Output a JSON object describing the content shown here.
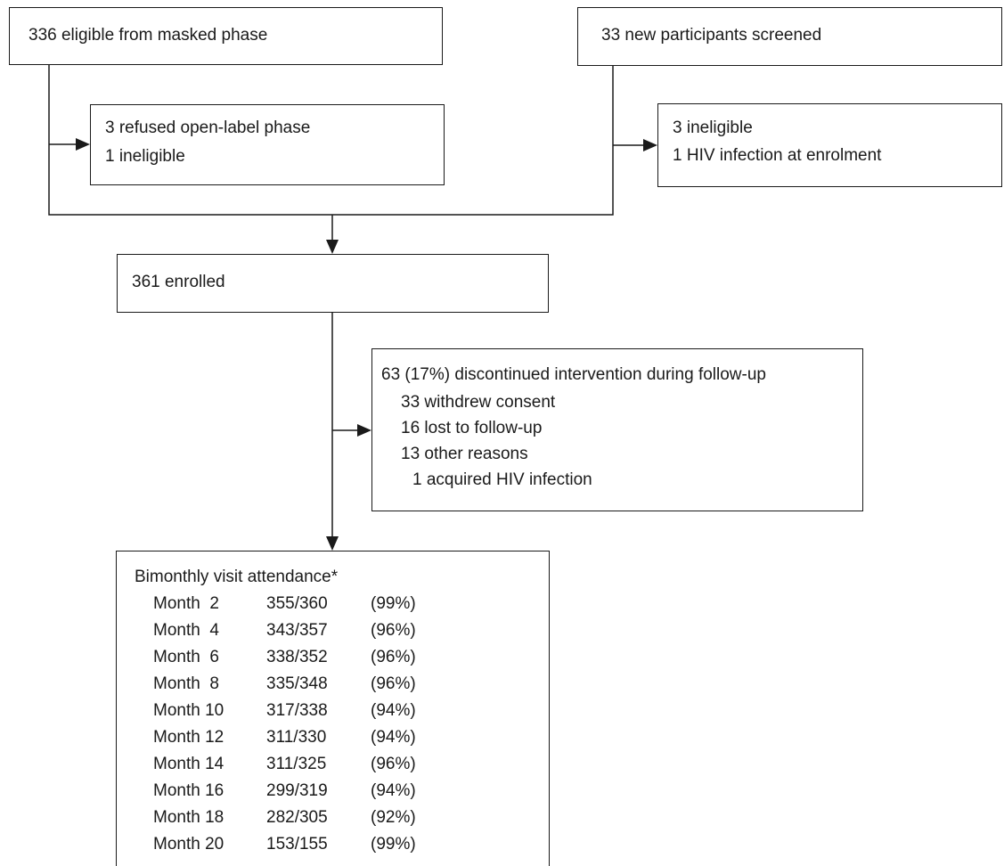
{
  "nodes": {
    "eligible_masked": "336 eligible from masked phase",
    "new_screened": "33 new participants screened",
    "excluded_left_1": "3 refused open-label phase",
    "excluded_left_2": "1 ineligible",
    "excluded_right_1": "3 ineligible",
    "excluded_right_2": "1 HIV infection at enrolment",
    "enrolled": "361 enrolled",
    "discontinued": {
      "title": "63 (17%) discontinued intervention during follow-up",
      "items": [
        "33 withdrew consent",
        "16 lost to follow-up",
        "13 other reasons"
      ],
      "subitem": "1 acquired HIV infection"
    },
    "attendance": {
      "title": "Bimonthly visit attendance*",
      "rows": [
        {
          "label": "Month  2",
          "count": "355/360",
          "pct": "(99%)"
        },
        {
          "label": "Month  4",
          "count": "343/357",
          "pct": "(96%)"
        },
        {
          "label": "Month  6",
          "count": "338/352",
          "pct": "(96%)"
        },
        {
          "label": "Month  8",
          "count": "335/348",
          "pct": "(96%)"
        },
        {
          "label": "Month 10",
          "count": "317/338",
          "pct": "(94%)"
        },
        {
          "label": "Month 12",
          "count": "311/330",
          "pct": "(94%)"
        },
        {
          "label": "Month 14",
          "count": "311/325",
          "pct": "(96%)"
        },
        {
          "label": "Month 16",
          "count": "299/319",
          "pct": "(94%)"
        },
        {
          "label": "Month 18",
          "count": "282/305",
          "pct": "(92%)"
        },
        {
          "label": "Month 20",
          "count": "153/155",
          "pct": "(99%)"
        }
      ]
    }
  }
}
